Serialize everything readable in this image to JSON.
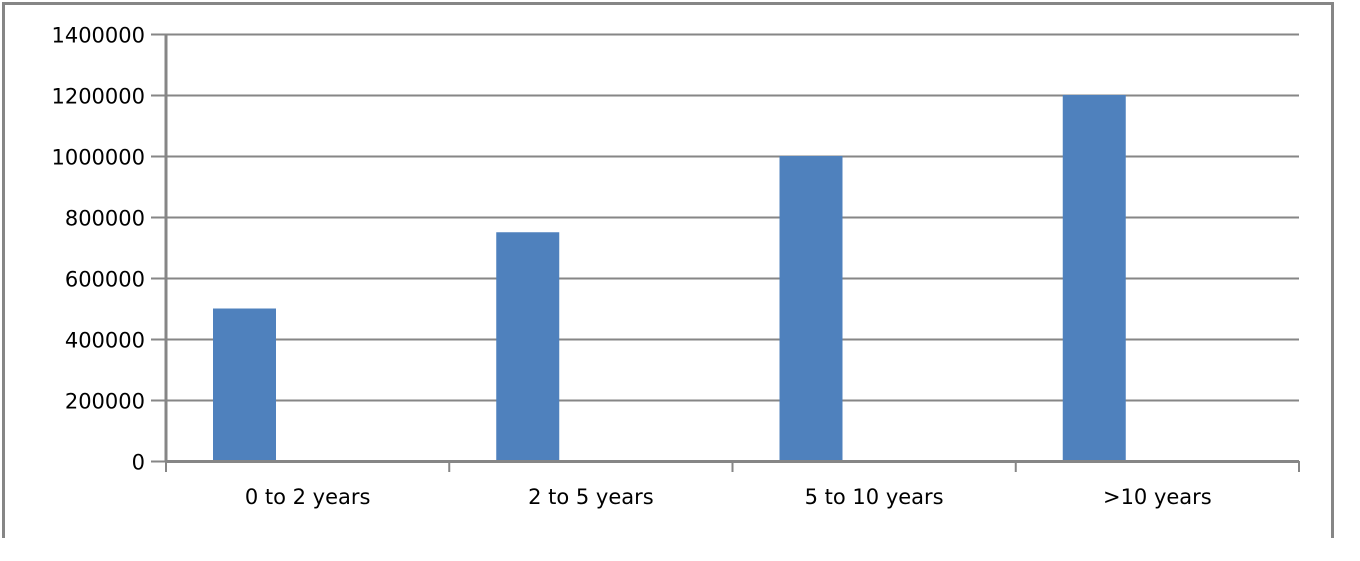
{
  "chart_data": {
    "type": "bar",
    "categories": [
      "0 to 2 years",
      "2 to 5 years",
      "5 to 10 years",
      ">10 years"
    ],
    "values": [
      500000,
      750000,
      1000000,
      1200000
    ],
    "title": "",
    "xlabel": "",
    "ylabel": "",
    "ylim": [
      0,
      1400000
    ],
    "yticks": [
      "0",
      "200000",
      "400000",
      "600000",
      "800000",
      "1000000",
      "1200000",
      "1400000"
    ],
    "grid": true,
    "legend": "none",
    "colors": {
      "bar": "#4f81bd",
      "axis": "#868686"
    }
  }
}
